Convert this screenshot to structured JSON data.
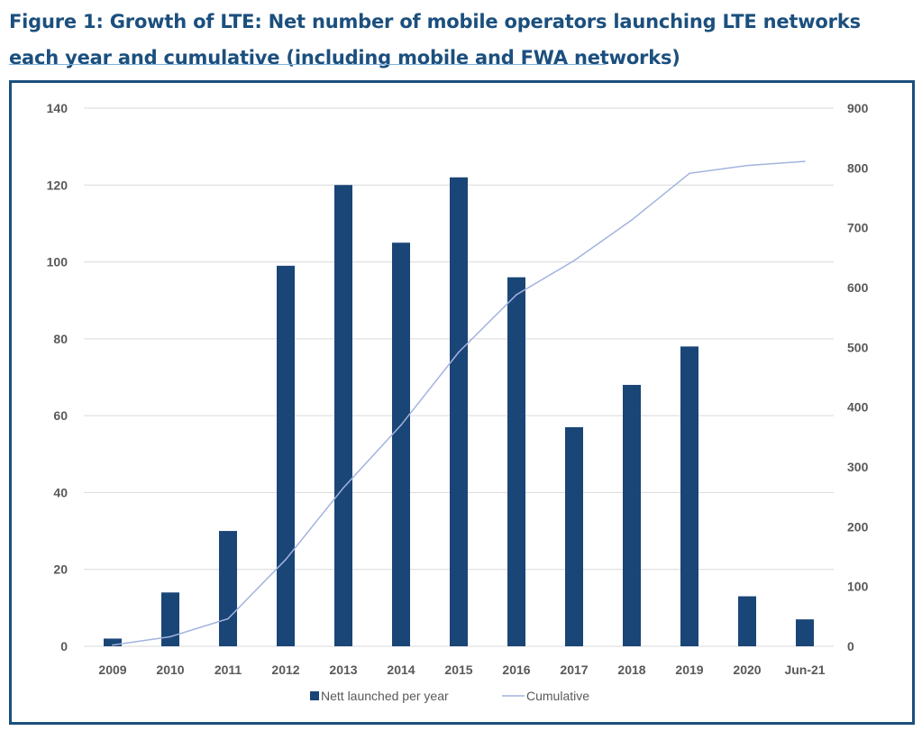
{
  "figure_title": "Figure 1: Growth of LTE: Net number of mobile operators launching LTE networks each year and cumulative (including mobile and FWA networks)",
  "chart_data": {
    "type": "bar+line",
    "categories": [
      "2009",
      "2010",
      "2011",
      "2012",
      "2013",
      "2014",
      "2015",
      "2016",
      "2017",
      "2018",
      "2019",
      "2020",
      "Jun-21"
    ],
    "series": [
      {
        "name": "Nett launched per year",
        "type": "bar",
        "axis": "left",
        "color": "#1a4577",
        "values": [
          2,
          14,
          30,
          99,
          120,
          105,
          122,
          96,
          57,
          68,
          78,
          13,
          7
        ]
      },
      {
        "name": "Cumulative",
        "type": "line",
        "axis": "right",
        "color": "#a3b3df",
        "values": [
          2,
          16,
          46,
          145,
          265,
          370,
          492,
          588,
          645,
          713,
          791,
          804,
          811
        ]
      }
    ],
    "y_left": {
      "range": [
        0,
        140
      ],
      "ticks": [
        "0",
        "20",
        "40",
        "60",
        "80",
        "100",
        "120",
        "140"
      ]
    },
    "y_right": {
      "range": [
        0,
        900
      ],
      "ticks": [
        "0",
        "100",
        "200",
        "300",
        "400",
        "500",
        "600",
        "700",
        "800",
        "900"
      ]
    },
    "grid": true,
    "legend_position": "bottom"
  },
  "colors": {
    "title": "#1b4f7e",
    "border": "#1b4f7e",
    "grid": "#d9d9d9"
  }
}
